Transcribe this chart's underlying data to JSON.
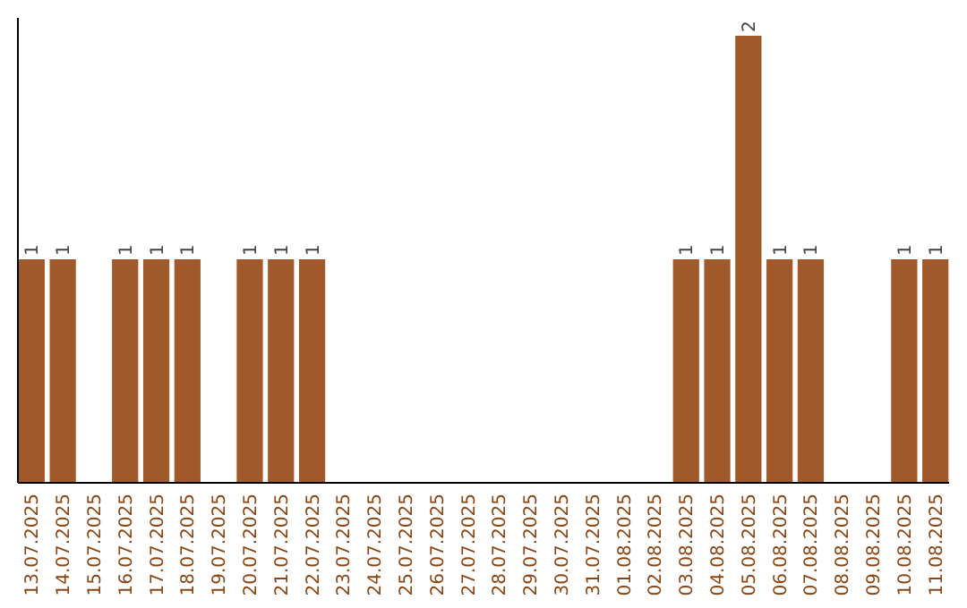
{
  "chart_data": {
    "type": "bar",
    "categories": [
      "13.07.2025",
      "14.07.2025",
      "15.07.2025",
      "16.07.2025",
      "17.07.2025",
      "18.07.2025",
      "19.07.2025",
      "20.07.2025",
      "21.07.2025",
      "22.07.2025",
      "23.07.2025",
      "24.07.2025",
      "25.07.2025",
      "26.07.2025",
      "27.07.2025",
      "28.07.2025",
      "29.07.2025",
      "30.07.2025",
      "31.07.2025",
      "01.08.2025",
      "02.08.2025",
      "03.08.2025",
      "04.08.2025",
      "05.08.2025",
      "06.08.2025",
      "07.08.2025",
      "08.08.2025",
      "09.08.2025",
      "10.08.2025",
      "11.08.2025"
    ],
    "values": [
      1,
      1,
      0,
      1,
      1,
      1,
      0,
      1,
      1,
      1,
      0,
      0,
      0,
      0,
      0,
      0,
      0,
      0,
      0,
      0,
      0,
      1,
      1,
      2,
      1,
      1,
      0,
      0,
      1,
      1
    ],
    "value_labels": [
      "1",
      "1",
      null,
      "1",
      "1",
      "1",
      null,
      "1",
      "1",
      "1",
      null,
      null,
      null,
      null,
      null,
      null,
      null,
      null,
      null,
      null,
      null,
      "1",
      "1",
      "2",
      "1",
      "1",
      null,
      null,
      "1",
      "1"
    ],
    "color": "#a0592a",
    "ylim": [
      0,
      2.08
    ],
    "tick_labels": "x"
  }
}
